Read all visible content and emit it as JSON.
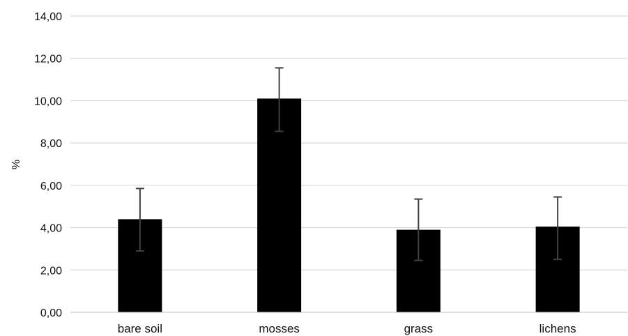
{
  "chart_data": {
    "type": "bar",
    "categories": [
      "bare soil",
      "mosses",
      "grass",
      "lichens"
    ],
    "values": [
      4.4,
      10.1,
      3.9,
      4.05
    ],
    "error_low": [
      2.9,
      8.55,
      2.45,
      2.5
    ],
    "error_high": [
      5.85,
      11.55,
      5.35,
      5.45
    ],
    "xlabel": "",
    "ylabel": "%",
    "ylim": [
      0,
      14
    ],
    "yticks": [
      0,
      2,
      4,
      6,
      8,
      10,
      12,
      14
    ],
    "ytick_labels": [
      "0,00",
      "2,00",
      "4,00",
      "6,00",
      "8,00",
      "10,00",
      "12,00",
      "14,00"
    ],
    "grid": true,
    "legend": "none",
    "bar_color": "#000000",
    "error_bar_color": "#404040",
    "grid_color": "#d0d0d0"
  }
}
